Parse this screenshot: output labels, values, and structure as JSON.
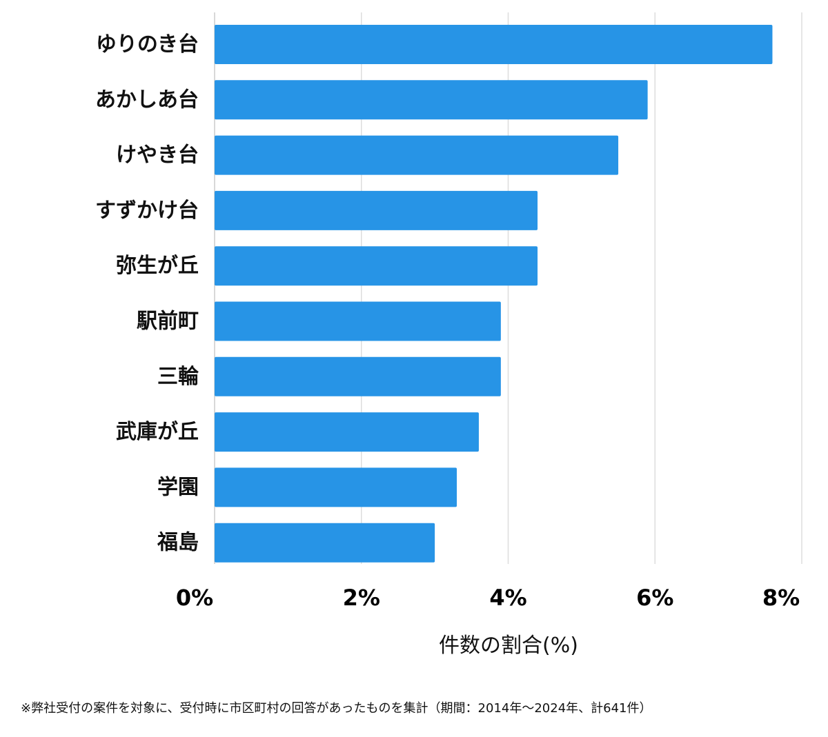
{
  "chart_data": {
    "type": "bar",
    "orientation": "horizontal",
    "categories": [
      "ゆりのき台",
      "あかしあ台",
      "けやき台",
      "すずかけ台",
      "弥生が丘",
      "駅前町",
      "三輪",
      "武庫が丘",
      "学園",
      "福島"
    ],
    "values": [
      7.6,
      5.9,
      5.5,
      4.4,
      4.4,
      3.9,
      3.9,
      3.6,
      3.3,
      3.0
    ],
    "xlabel": "件数の割合(%)",
    "ylabel": "",
    "xlim": [
      0,
      8
    ],
    "x_ticks": [
      0,
      2,
      4,
      6,
      8
    ],
    "x_tick_labels": [
      "0%",
      "2%",
      "4%",
      "6%",
      "8%"
    ],
    "grid": true,
    "bar_color": "#2794e6",
    "grid_color": "#dddddd"
  },
  "footnote": "※弊社受付の案件を対象に、受付時に市区町村の回答があったものを集計（期間：2014年～2024年、計641件）"
}
